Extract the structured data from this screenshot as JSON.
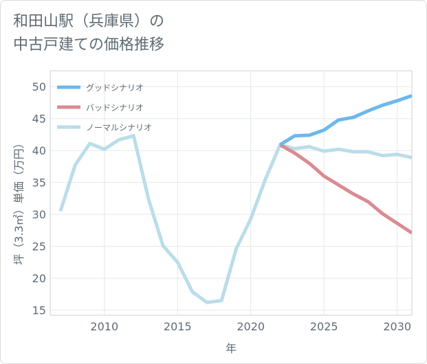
{
  "title_line1": "和田山駅（兵庫県）の",
  "title_line2": "中古戸建ての価格推移",
  "chart_data": {
    "type": "line",
    "xlabel": "年",
    "ylabel": "坪（3.3㎡）単価（万円）",
    "xlim": [
      2006.3,
      2031
    ],
    "ylim": [
      14.2,
      52.5
    ],
    "xticks": [
      2010,
      2015,
      2020,
      2025,
      2030
    ],
    "yticks": [
      15,
      20,
      25,
      30,
      35,
      40,
      45,
      50
    ],
    "grid": true,
    "legend_position": "top-left",
    "series": [
      {
        "name": "グッドシナリオ",
        "color": "#6cb8ec",
        "points": [
          [
            2022,
            40.9
          ],
          [
            2023,
            42.3
          ],
          [
            2024,
            42.4
          ],
          [
            2025,
            43.2
          ],
          [
            2026,
            44.8
          ],
          [
            2027,
            45.2
          ],
          [
            2028,
            46.2
          ],
          [
            2029,
            47.1
          ],
          [
            2030,
            47.8
          ],
          [
            2031,
            48.6
          ]
        ]
      },
      {
        "name": "バッドシナリオ",
        "color": "#dc8a92",
        "points": [
          [
            2022,
            40.9
          ],
          [
            2023,
            39.6
          ],
          [
            2024,
            38.0
          ],
          [
            2025,
            36.0
          ],
          [
            2026,
            34.6
          ],
          [
            2027,
            33.2
          ],
          [
            2028,
            32.0
          ],
          [
            2029,
            30.1
          ],
          [
            2030,
            28.6
          ],
          [
            2031,
            27.1
          ]
        ]
      },
      {
        "name": "ノーマルシナリオ",
        "color": "#badde9",
        "points": [
          [
            2007,
            30.5
          ],
          [
            2008,
            37.7
          ],
          [
            2009,
            41.1
          ],
          [
            2010,
            40.2
          ],
          [
            2011,
            41.7
          ],
          [
            2012,
            42.3
          ],
          [
            2013,
            32.5
          ],
          [
            2014,
            25.1
          ],
          [
            2015,
            22.5
          ],
          [
            2016,
            17.9
          ],
          [
            2017,
            16.2
          ],
          [
            2018,
            16.5
          ],
          [
            2019,
            24.6
          ],
          [
            2020,
            29.3
          ],
          [
            2021,
            35.5
          ],
          [
            2022,
            40.9
          ],
          [
            2023,
            40.3
          ],
          [
            2024,
            40.6
          ],
          [
            2025,
            39.9
          ],
          [
            2026,
            40.2
          ],
          [
            2027,
            39.8
          ],
          [
            2028,
            39.8
          ],
          [
            2029,
            39.2
          ],
          [
            2030,
            39.4
          ],
          [
            2031,
            38.9
          ]
        ]
      }
    ]
  }
}
